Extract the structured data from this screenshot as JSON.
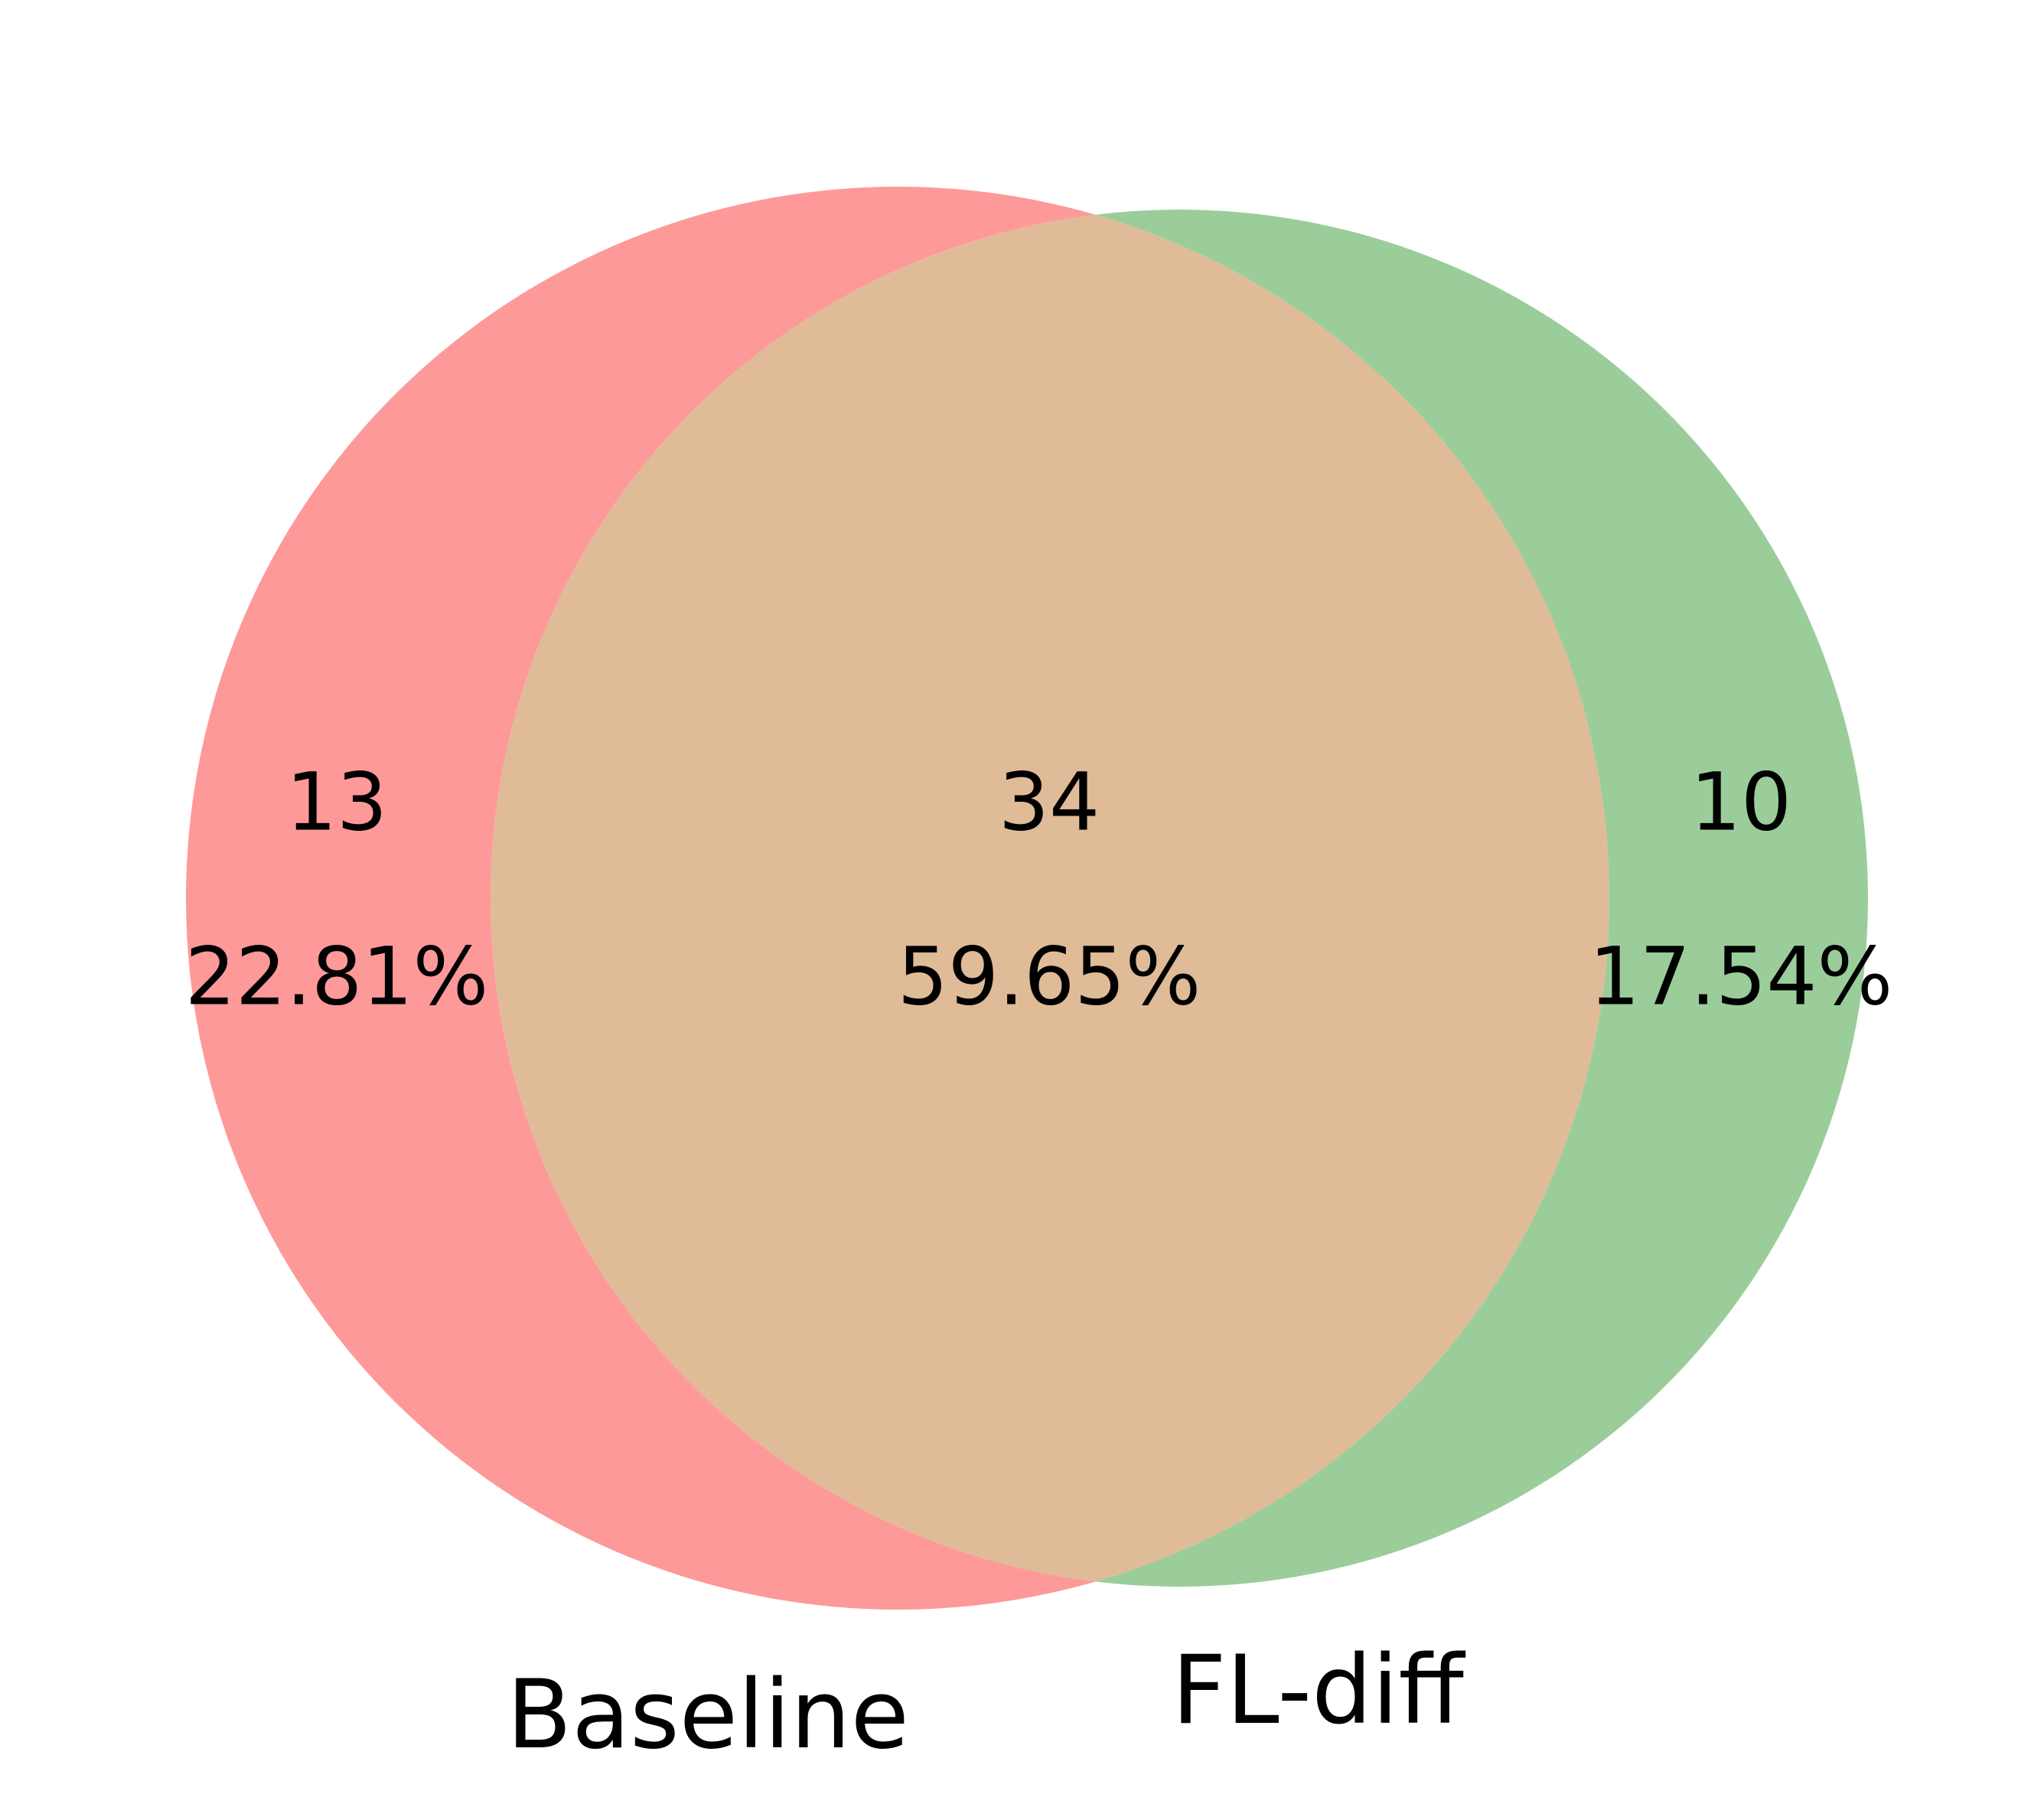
{
  "chart_data": {
    "type": "venn",
    "sets": [
      "Baseline",
      "FL-diff"
    ],
    "values": [
      13,
      34,
      10
    ],
    "shares": [
      22.81,
      59.65,
      17.54
    ],
    "share_labels": [
      "22.81%",
      "59.65%",
      "17.54%"
    ],
    "colors": [
      "#fe9999",
      "#e0bb98",
      "#9bcd9a"
    ]
  }
}
